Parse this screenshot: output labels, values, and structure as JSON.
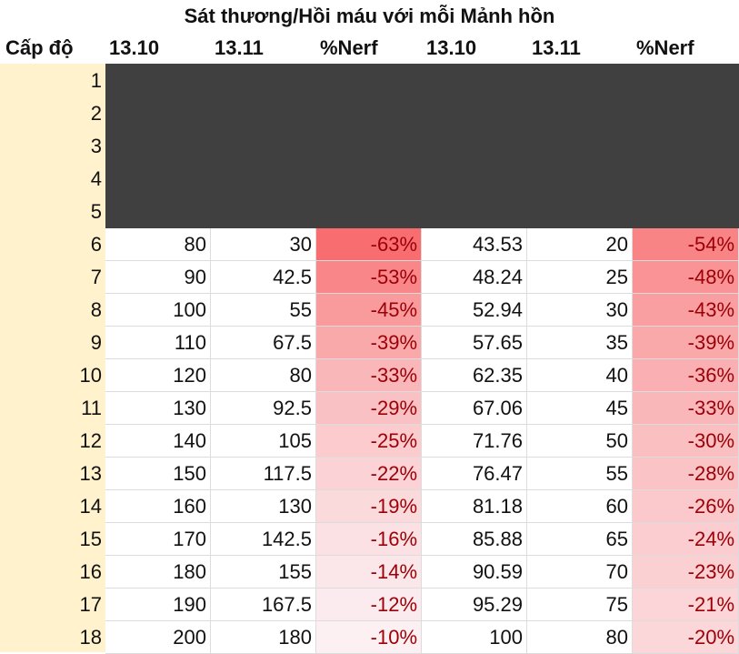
{
  "title": "Sát thương/Hồi máu với mỗi Mảnh hồn",
  "headers": [
    "Cấp độ",
    "13.10",
    "13.11",
    "%Nerf",
    "13.10",
    "13.11",
    "%Nerf"
  ],
  "empty_levels": [
    "1",
    "2",
    "3",
    "4",
    "5"
  ],
  "rows": [
    {
      "level": "6",
      "a": "80",
      "b": "30",
      "c": "-63%",
      "d": "43.53",
      "e": "20",
      "f": "-54%",
      "c_val": 0.63,
      "f_val": 0.54
    },
    {
      "level": "7",
      "a": "90",
      "b": "42.5",
      "c": "-53%",
      "d": "48.24",
      "e": "25",
      "f": "-48%",
      "c_val": 0.53,
      "f_val": 0.48
    },
    {
      "level": "8",
      "a": "100",
      "b": "55",
      "c": "-45%",
      "d": "52.94",
      "e": "30",
      "f": "-43%",
      "c_val": 0.45,
      "f_val": 0.43
    },
    {
      "level": "9",
      "a": "110",
      "b": "67.5",
      "c": "-39%",
      "d": "57.65",
      "e": "35",
      "f": "-39%",
      "c_val": 0.39,
      "f_val": 0.39
    },
    {
      "level": "10",
      "a": "120",
      "b": "80",
      "c": "-33%",
      "d": "62.35",
      "e": "40",
      "f": "-36%",
      "c_val": 0.33,
      "f_val": 0.36
    },
    {
      "level": "11",
      "a": "130",
      "b": "92.5",
      "c": "-29%",
      "d": "67.06",
      "e": "45",
      "f": "-33%",
      "c_val": 0.29,
      "f_val": 0.33
    },
    {
      "level": "12",
      "a": "140",
      "b": "105",
      "c": "-25%",
      "d": "71.76",
      "e": "50",
      "f": "-30%",
      "c_val": 0.25,
      "f_val": 0.3
    },
    {
      "level": "13",
      "a": "150",
      "b": "117.5",
      "c": "-22%",
      "d": "76.47",
      "e": "55",
      "f": "-28%",
      "c_val": 0.22,
      "f_val": 0.28
    },
    {
      "level": "14",
      "a": "160",
      "b": "130",
      "c": "-19%",
      "d": "81.18",
      "e": "60",
      "f": "-26%",
      "c_val": 0.19,
      "f_val": 0.26
    },
    {
      "level": "15",
      "a": "170",
      "b": "142.5",
      "c": "-16%",
      "d": "85.88",
      "e": "65",
      "f": "-24%",
      "c_val": 0.16,
      "f_val": 0.24
    },
    {
      "level": "16",
      "a": "180",
      "b": "155",
      "c": "-14%",
      "d": "90.59",
      "e": "70",
      "f": "-23%",
      "c_val": 0.14,
      "f_val": 0.23
    },
    {
      "level": "17",
      "a": "190",
      "b": "167.5",
      "c": "-12%",
      "d": "95.29",
      "e": "75",
      "f": "-21%",
      "c_val": 0.12,
      "f_val": 0.21
    },
    {
      "level": "18",
      "a": "200",
      "b": "180",
      "c": "-10%",
      "d": "100",
      "e": "80",
      "f": "-20%",
      "c_val": 0.1,
      "f_val": 0.2
    }
  ],
  "colors": {
    "level_column_bg": "#FFF2CC",
    "empty_rows_bg": "#404040",
    "nerf_text": "#9C0006",
    "heat_max": "#F8696B",
    "heat_min": "#FCFCFF"
  }
}
